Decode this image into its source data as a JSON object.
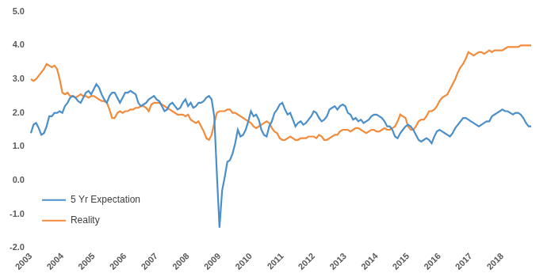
{
  "chart_data": {
    "type": "line",
    "categories": [
      "2003",
      null,
      null,
      null,
      null,
      null,
      null,
      null,
      null,
      null,
      null,
      null,
      "2004",
      null,
      null,
      null,
      null,
      null,
      null,
      null,
      null,
      null,
      null,
      null,
      "2005",
      null,
      null,
      null,
      null,
      null,
      null,
      null,
      null,
      null,
      null,
      null,
      "2006",
      null,
      null,
      null,
      null,
      null,
      null,
      null,
      null,
      null,
      null,
      null,
      "2007",
      null,
      null,
      null,
      null,
      null,
      null,
      null,
      null,
      null,
      null,
      null,
      "2008",
      null,
      null,
      null,
      null,
      null,
      null,
      null,
      null,
      null,
      null,
      null,
      "2009",
      null,
      null,
      null,
      null,
      null,
      null,
      null,
      null,
      null,
      null,
      null,
      "2010",
      null,
      null,
      null,
      null,
      null,
      null,
      null,
      null,
      null,
      null,
      null,
      "2011",
      null,
      null,
      null,
      null,
      null,
      null,
      null,
      null,
      null,
      null,
      null,
      "2012",
      null,
      null,
      null,
      null,
      null,
      null,
      null,
      null,
      null,
      null,
      null,
      "2013",
      null,
      null,
      null,
      null,
      null,
      null,
      null,
      null,
      null,
      null,
      null,
      "2014",
      null,
      null,
      null,
      null,
      null,
      null,
      null,
      null,
      null,
      null,
      null,
      "2015",
      null,
      null,
      null,
      null,
      null,
      null,
      null,
      null,
      null,
      null,
      null,
      "2016",
      null,
      null,
      null,
      null,
      null,
      null,
      null,
      null,
      null,
      null,
      null,
      "2017",
      null,
      null,
      null,
      null,
      null,
      null,
      null,
      null,
      null,
      null,
      null,
      "2018",
      null,
      null,
      null,
      null,
      null,
      null,
      null,
      null,
      null,
      null,
      null
    ],
    "series": [
      {
        "name": "5 Yr Expectation",
        "color": "#4a8fc9",
        "values": [
          1.4,
          1.65,
          1.7,
          1.55,
          1.35,
          1.4,
          1.6,
          1.9,
          1.9,
          2.0,
          2.0,
          2.05,
          2.0,
          2.2,
          2.3,
          2.45,
          2.5,
          2.45,
          2.35,
          2.3,
          2.45,
          2.6,
          2.65,
          2.55,
          2.7,
          2.85,
          2.75,
          2.55,
          2.4,
          2.3,
          2.5,
          2.6,
          2.6,
          2.45,
          2.3,
          2.45,
          2.6,
          2.6,
          2.65,
          2.6,
          2.55,
          2.3,
          2.2,
          2.25,
          2.3,
          2.4,
          2.45,
          2.5,
          2.4,
          2.35,
          2.2,
          2.05,
          2.1,
          2.25,
          2.3,
          2.2,
          2.1,
          2.15,
          2.3,
          2.4,
          2.2,
          2.3,
          2.15,
          2.2,
          2.3,
          2.3,
          2.35,
          2.45,
          2.5,
          2.4,
          1.9,
          0.2,
          -1.4,
          -0.3,
          0.1,
          0.55,
          0.6,
          0.8,
          1.1,
          1.5,
          1.3,
          1.35,
          1.5,
          1.75,
          2.05,
          1.9,
          1.95,
          1.8,
          1.5,
          1.35,
          1.3,
          1.6,
          1.75,
          2.0,
          2.1,
          2.25,
          2.3,
          2.1,
          1.95,
          2.0,
          1.8,
          1.6,
          1.7,
          1.75,
          1.65,
          1.7,
          1.8,
          1.9,
          2.05,
          2.0,
          1.85,
          1.75,
          1.8,
          1.9,
          2.1,
          2.15,
          2.2,
          2.1,
          2.2,
          2.25,
          2.2,
          2.0,
          1.95,
          1.8,
          1.85,
          1.75,
          1.8,
          1.7,
          1.75,
          1.8,
          1.9,
          1.95,
          1.95,
          1.9,
          1.85,
          1.75,
          1.6,
          1.6,
          1.5,
          1.3,
          1.25,
          1.4,
          1.5,
          1.6,
          1.65,
          1.6,
          1.5,
          1.35,
          1.2,
          1.15,
          1.2,
          1.25,
          1.2,
          1.1,
          1.3,
          1.45,
          1.5,
          1.45,
          1.4,
          1.35,
          1.3,
          1.4,
          1.55,
          1.65,
          1.75,
          1.85,
          1.85,
          1.8,
          1.75,
          1.7,
          1.65,
          1.6,
          1.65,
          1.7,
          1.75,
          1.75,
          1.9,
          1.95,
          2.0,
          2.05,
          2.1,
          2.05,
          2.05,
          2.0,
          1.95,
          2.0,
          2.0,
          1.95,
          1.85,
          1.7,
          1.6,
          1.6
        ]
      },
      {
        "name": "Reality",
        "color": "#f28b3c",
        "values": [
          3.0,
          2.95,
          3.0,
          3.1,
          3.2,
          3.3,
          3.45,
          3.4,
          3.35,
          3.4,
          3.3,
          3.0,
          2.6,
          2.55,
          2.6,
          2.5,
          2.5,
          2.45,
          2.5,
          2.55,
          2.5,
          2.5,
          2.45,
          2.5,
          2.5,
          2.45,
          2.4,
          2.35,
          2.35,
          2.3,
          2.1,
          1.85,
          1.85,
          2.0,
          2.05,
          2.0,
          2.05,
          2.05,
          2.1,
          2.1,
          2.15,
          2.15,
          2.2,
          2.2,
          2.15,
          2.05,
          2.25,
          2.3,
          2.3,
          2.3,
          2.25,
          2.2,
          2.15,
          2.1,
          2.05,
          2.0,
          1.95,
          1.95,
          1.95,
          1.9,
          1.95,
          1.8,
          1.75,
          1.7,
          1.75,
          1.6,
          1.45,
          1.25,
          1.2,
          1.35,
          1.7,
          2.0,
          2.05,
          2.05,
          2.05,
          2.1,
          2.1,
          2.0,
          2.0,
          1.95,
          1.9,
          1.85,
          1.8,
          1.75,
          1.7,
          1.6,
          1.55,
          1.6,
          1.65,
          1.7,
          1.75,
          1.7,
          1.55,
          1.45,
          1.4,
          1.25,
          1.2,
          1.2,
          1.25,
          1.3,
          1.25,
          1.2,
          1.2,
          1.25,
          1.25,
          1.25,
          1.3,
          1.3,
          1.3,
          1.25,
          1.35,
          1.3,
          1.2,
          1.2,
          1.25,
          1.3,
          1.35,
          1.35,
          1.45,
          1.5,
          1.5,
          1.5,
          1.45,
          1.5,
          1.55,
          1.55,
          1.5,
          1.45,
          1.4,
          1.45,
          1.5,
          1.5,
          1.45,
          1.45,
          1.5,
          1.55,
          1.5,
          1.5,
          1.55,
          1.6,
          1.75,
          1.95,
          1.9,
          1.85,
          1.6,
          1.5,
          1.5,
          1.6,
          1.75,
          1.8,
          1.8,
          1.9,
          2.05,
          2.05,
          2.1,
          2.2,
          2.35,
          2.45,
          2.5,
          2.55,
          2.7,
          2.85,
          3.0,
          3.2,
          3.35,
          3.45,
          3.6,
          3.8,
          3.75,
          3.7,
          3.75,
          3.8,
          3.8,
          3.75,
          3.8,
          3.85,
          3.8,
          3.85,
          3.85,
          3.85,
          3.85,
          3.9,
          3.95,
          3.95,
          3.95,
          3.95,
          3.95,
          4.0,
          4.0,
          4.0,
          4.0,
          4.0
        ]
      }
    ],
    "ylim": [
      -2,
      5
    ],
    "yticks": [
      {
        "value": -2,
        "label": "-2.0"
      },
      {
        "value": -1,
        "label": "-1.0"
      },
      {
        "value": 0,
        "label": "0.0"
      },
      {
        "value": 1,
        "label": "1.0"
      },
      {
        "value": 2,
        "label": "2.0"
      },
      {
        "value": 3,
        "label": "3.0"
      },
      {
        "value": 4,
        "label": "4.0"
      },
      {
        "value": 5,
        "label": "5.0"
      }
    ],
    "grid": false,
    "legend": "upper right"
  }
}
